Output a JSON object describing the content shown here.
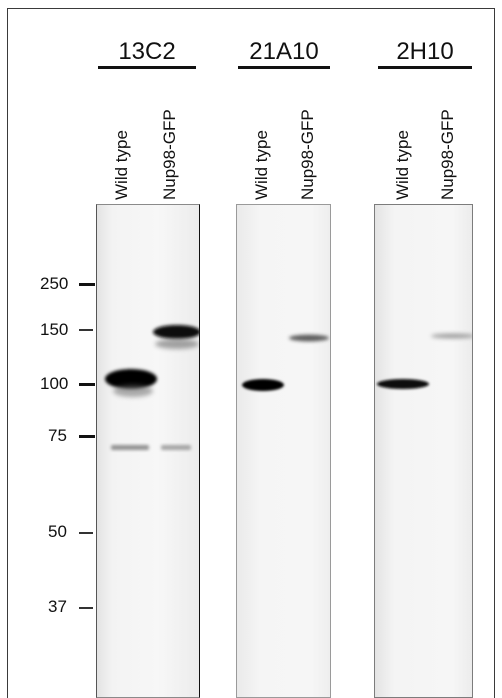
{
  "figure": {
    "groups": [
      {
        "label": "13C2",
        "lanes": [
          "Wild type",
          "Nup98-GFP"
        ]
      },
      {
        "label": "21A10",
        "lanes": [
          "Wild type",
          "Nup98-GFP"
        ]
      },
      {
        "label": "2H10",
        "lanes": [
          "Wild type",
          "Nup98-GFP"
        ]
      }
    ],
    "markers": [
      "250",
      "150",
      "100",
      "75",
      "50",
      "37"
    ],
    "colors": {
      "background": "#ffffff",
      "band": "#0a0a0a",
      "panel_fill_1": "#ececec",
      "panel_fill_2": "#f2f2f2",
      "panel_fill_3": "#f1f1f1"
    }
  }
}
